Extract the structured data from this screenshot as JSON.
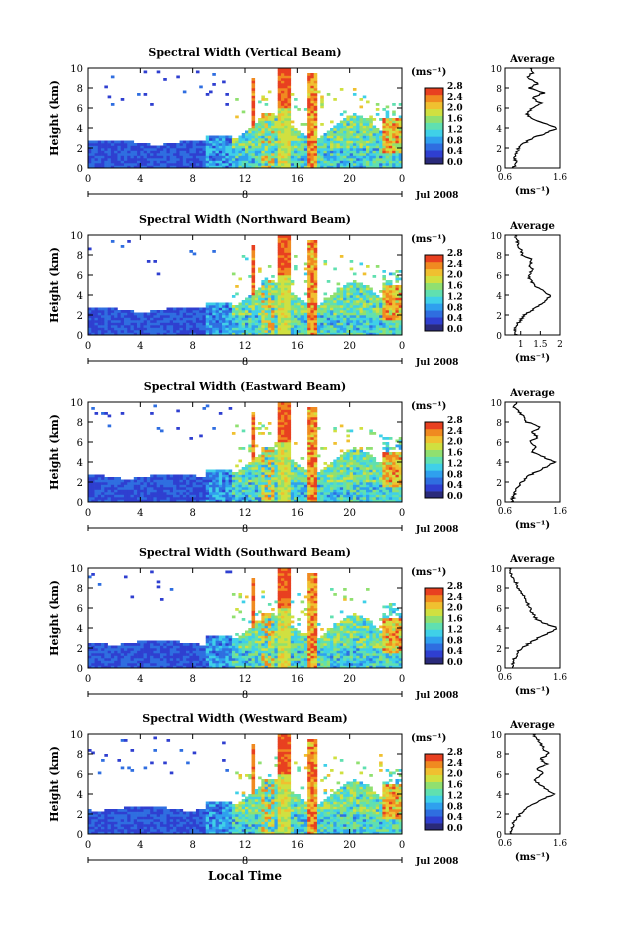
{
  "figure": {
    "xlabel": "Local Time",
    "ylabel": "Height (km)",
    "unit": "(ms⁻¹)",
    "date_label": "Jul 2008",
    "day_label": "8",
    "avg_title": "Average",
    "avg_xlabel": "(ms⁻¹)"
  },
  "colorbar": {
    "ticks": [
      "0.0",
      "0.4",
      "0.8",
      "1.2",
      "1.6",
      "2.0",
      "2.4",
      "2.8"
    ],
    "colors": [
      "#2a2a7a",
      "#2f3fd0",
      "#2f6ee0",
      "#2fa0ee",
      "#3fd0e8",
      "#60e0b0",
      "#90e070",
      "#d0e040",
      "#f0c030",
      "#f08a20",
      "#e84020"
    ]
  },
  "chart_data": [
    {
      "type": "heatmap",
      "title": "Spectral Width (Vertical Beam)",
      "xlabel": "Local Time",
      "ylabel": "Height (km)",
      "xlim": [
        0,
        24
      ],
      "ylim": [
        0,
        10
      ],
      "xticks": [
        "0",
        "4",
        "8",
        "12",
        "16",
        "20",
        "0"
      ],
      "yticks": [
        "0",
        "2",
        "4",
        "6",
        "8",
        "10"
      ],
      "colorbar_range": [
        0.0,
        2.8
      ],
      "average_profile": {
        "xlim": [
          0.6,
          1.6
        ],
        "xticks": [
          "0.6",
          "1.6"
        ],
        "ylim": [
          0,
          10
        ],
        "yticks": [
          "0",
          "2",
          "4",
          "6",
          "8",
          "10"
        ],
        "height": [
          0,
          0.5,
          1,
          1.5,
          2,
          2.5,
          3,
          3.5,
          4,
          4.5,
          5,
          5.5,
          6,
          6.5,
          7,
          7.5,
          8,
          8.5,
          9,
          9.5,
          10
        ],
        "value": [
          0.75,
          0.8,
          0.78,
          0.8,
          0.85,
          0.95,
          1.1,
          1.35,
          1.55,
          1.3,
          1.05,
          1.0,
          1.1,
          1.25,
          1.1,
          1.3,
          1.05,
          1.2,
          1.0,
          1.1,
          1.05
        ]
      }
    },
    {
      "type": "heatmap",
      "title": "Spectral Width (Northward Beam)",
      "xlabel": "Local Time",
      "ylabel": "Height (km)",
      "xlim": [
        0,
        24
      ],
      "ylim": [
        0,
        10
      ],
      "xticks": [
        "0",
        "4",
        "8",
        "12",
        "16",
        "20",
        "0"
      ],
      "yticks": [
        "0",
        "2",
        "4",
        "6",
        "8",
        "10"
      ],
      "colorbar_range": [
        0.0,
        2.8
      ],
      "average_profile": {
        "xlim": [
          0.6,
          2.0
        ],
        "xticks": [
          "1",
          "1.5",
          "2"
        ],
        "ylim": [
          0,
          10
        ],
        "yticks": [
          "0",
          "2",
          "4",
          "6",
          "8",
          "10"
        ],
        "height": [
          0,
          0.5,
          1,
          1.5,
          2,
          2.5,
          3,
          3.5,
          4,
          4.5,
          5,
          5.5,
          6,
          6.5,
          7,
          7.5,
          8,
          8.5,
          9,
          9.5,
          10
        ],
        "value": [
          0.9,
          0.85,
          0.9,
          1.0,
          1.1,
          1.3,
          1.5,
          1.65,
          1.75,
          1.55,
          1.35,
          1.25,
          1.2,
          1.3,
          1.2,
          1.3,
          1.05,
          1.0,
          0.95,
          0.9,
          0.85
        ]
      }
    },
    {
      "type": "heatmap",
      "title": "Spectral Width (Eastward Beam)",
      "xlabel": "Local Time",
      "ylabel": "Height (km)",
      "xlim": [
        0,
        24
      ],
      "ylim": [
        0,
        10
      ],
      "xticks": [
        "0",
        "4",
        "8",
        "12",
        "16",
        "20",
        "0"
      ],
      "yticks": [
        "0",
        "2",
        "4",
        "6",
        "8",
        "10"
      ],
      "colorbar_range": [
        0.0,
        2.8
      ],
      "average_profile": {
        "xlim": [
          0.6,
          1.6
        ],
        "xticks": [
          "0.6",
          "1.6"
        ],
        "ylim": [
          0,
          10
        ],
        "yticks": [
          "0",
          "2",
          "4",
          "6",
          "8",
          "10"
        ],
        "height": [
          0,
          0.5,
          1,
          1.5,
          2,
          2.5,
          3,
          3.5,
          4,
          4.5,
          5,
          5.5,
          6,
          6.5,
          7,
          7.5,
          8,
          8.5,
          9,
          9.5,
          10
        ],
        "value": [
          0.72,
          0.75,
          0.78,
          0.82,
          0.9,
          1.0,
          1.15,
          1.35,
          1.5,
          1.3,
          1.1,
          1.15,
          1.05,
          1.2,
          1.1,
          1.25,
          1.0,
          0.95,
          0.85,
          0.75,
          0.8
        ]
      }
    },
    {
      "type": "heatmap",
      "title": "Spectral Width (Southward Beam)",
      "xlabel": "Local Time",
      "ylabel": "Height (km)",
      "xlim": [
        0,
        24
      ],
      "ylim": [
        0,
        10
      ],
      "xticks": [
        "0",
        "4",
        "8",
        "12",
        "16",
        "20",
        "0"
      ],
      "yticks": [
        "0",
        "2",
        "4",
        "6",
        "8",
        "10"
      ],
      "colorbar_range": [
        0.0,
        2.8
      ],
      "average_profile": {
        "xlim": [
          0.6,
          1.6
        ],
        "xticks": [
          "0.6",
          "1.6"
        ],
        "ylim": [
          0,
          10
        ],
        "yticks": [
          "0",
          "2",
          "4",
          "6",
          "8",
          "10"
        ],
        "height": [
          0,
          0.5,
          1,
          1.5,
          2,
          2.5,
          3,
          3.5,
          4,
          4.5,
          5,
          5.5,
          6,
          6.5,
          7,
          7.5,
          8,
          8.5,
          9,
          9.5,
          10
        ],
        "value": [
          0.72,
          0.74,
          0.78,
          0.82,
          0.9,
          1.05,
          1.2,
          1.4,
          1.55,
          1.3,
          1.15,
          1.1,
          1.05,
          1.0,
          0.95,
          0.9,
          0.85,
          0.8,
          0.75,
          0.7,
          0.68
        ]
      }
    },
    {
      "type": "heatmap",
      "title": "Spectral Width (Westward Beam)",
      "xlabel": "Local Time",
      "ylabel": "Height (km)",
      "xlim": [
        0,
        24
      ],
      "ylim": [
        0,
        10
      ],
      "xticks": [
        "0",
        "4",
        "8",
        "12",
        "16",
        "20",
        "0"
      ],
      "yticks": [
        "0",
        "2",
        "4",
        "6",
        "8",
        "10"
      ],
      "colorbar_range": [
        0.0,
        2.8
      ],
      "average_profile": {
        "xlim": [
          0.6,
          1.6
        ],
        "xticks": [
          "0.6",
          "1.6"
        ],
        "ylim": [
          0,
          10
        ],
        "yticks": [
          "0",
          "2",
          "4",
          "6",
          "8",
          "10"
        ],
        "height": [
          0,
          0.5,
          1,
          1.5,
          2,
          2.5,
          3,
          3.5,
          4,
          4.5,
          5,
          5.5,
          6,
          6.5,
          7,
          7.5,
          8,
          8.5,
          9,
          9.5,
          10
        ],
        "value": [
          0.7,
          0.72,
          0.75,
          0.8,
          0.88,
          0.98,
          1.1,
          1.3,
          1.5,
          1.35,
          1.2,
          1.15,
          1.3,
          1.2,
          1.35,
          1.25,
          1.4,
          1.3,
          1.25,
          1.2,
          1.1
        ]
      }
    }
  ]
}
